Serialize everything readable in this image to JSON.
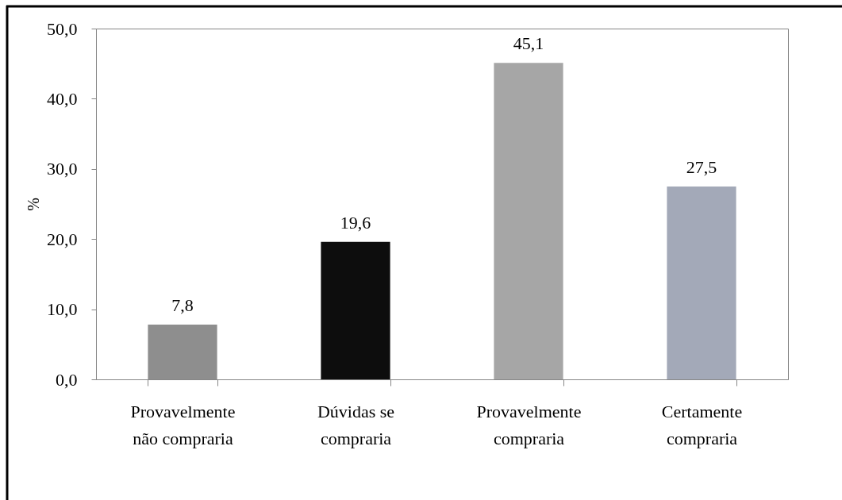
{
  "chart_data": {
    "type": "bar",
    "ylabel": "%",
    "categories": [
      "Provavelmente não compraria",
      "Dúvidas se compraria",
      "Provavelmente compraria",
      "Certamente compraria"
    ],
    "values": [
      7.8,
      19.6,
      45.1,
      27.5
    ],
    "colors": [
      "#8e8e8e",
      "#0d0d0d",
      "#a6a6a6",
      "#a3a9b8"
    ],
    "value_labels": [
      "7,8",
      "19,6",
      "45,1",
      "27,5"
    ],
    "ylim": [
      0,
      50
    ],
    "yticks": [
      {
        "value": 0,
        "label": "0,0"
      },
      {
        "value": 10,
        "label": "10,0"
      },
      {
        "value": 20,
        "label": "20,0"
      },
      {
        "value": 30,
        "label": "30,0"
      },
      {
        "value": 40,
        "label": "40,0"
      },
      {
        "value": 50,
        "label": "50,0"
      }
    ]
  }
}
